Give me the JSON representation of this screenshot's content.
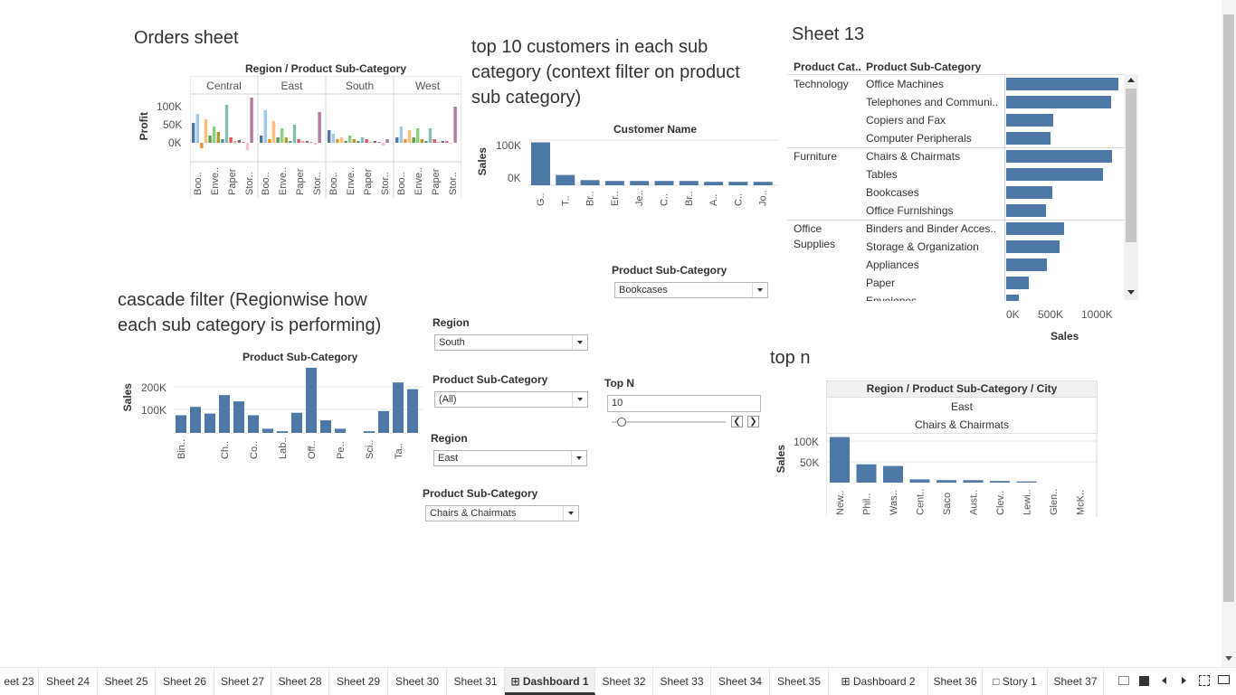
{
  "titles": {
    "orders": "Orders sheet",
    "top10_line1": "top 10 customers in each sub",
    "top10_line2": "category (context filter on product",
    "top10_line3": "sub category)",
    "sheet13": "Sheet 13",
    "cascade_line1": "cascade filter (Regionwise how",
    "cascade_line2": "each sub category  is performing)",
    "topn": "top n"
  },
  "orders_chart": {
    "header": "Region / Product Sub-Category",
    "regions": [
      "Central",
      "East",
      "South",
      "West"
    ],
    "y_axis": "Profit",
    "y_ticks": [
      "100K",
      "50K",
      "0K"
    ],
    "x_labels": [
      "Boo..",
      "Enve..",
      "Paper",
      "Stor.."
    ]
  },
  "top10_chart": {
    "header": "Customer Name",
    "y_axis": "Sales",
    "y_ticks": [
      "100K",
      "0K"
    ],
    "x_labels": [
      "G..",
      "T..",
      "Br..",
      "Er..",
      "Je..",
      "C..",
      "Br..",
      "A..",
      "C..",
      "Jo.."
    ]
  },
  "sheet13": {
    "col1": "Product Cat..",
    "col2": "Product Sub-Category",
    "groups": [
      {
        "category": "Technology",
        "items": [
          "Office Machines",
          "Telephones and Communi..",
          "Copiers and Fax",
          "Computer Peripherals"
        ]
      },
      {
        "category": "Furniture",
        "items": [
          "Chairs & Chairmats",
          "Tables",
          "Bookcases",
          "Office Furnishings"
        ]
      },
      {
        "category": "Office Supplies",
        "items": [
          "Binders and Binder Acces..",
          "Storage & Organization",
          "Appliances",
          "Paper",
          "Envelopes"
        ]
      }
    ],
    "x_ticks": [
      "0K",
      "500K",
      "1000K"
    ],
    "x_axis": "Sales"
  },
  "cascade_chart": {
    "header": "Product Sub-Category",
    "y_axis": "Sales",
    "y_ticks": [
      "200K",
      "100K"
    ],
    "x_labels": [
      "Bin..",
      "Ch..",
      "Co..",
      "Lab..",
      "Off..",
      "Pe..",
      "Sci..",
      "Ta.."
    ]
  },
  "filters": {
    "psc_top_label": "Product Sub-Category",
    "psc_top_value": "Bookcases",
    "region1_label": "Region",
    "region1_value": "South",
    "psc2_label": "Product Sub-Category",
    "psc2_value": "(All)",
    "region2_label": "Region",
    "region2_value": "East",
    "psc3_label": "Product Sub-Category",
    "psc3_value": "Chairs & Chairmats",
    "topn_label": "Top N",
    "topn_value": "10"
  },
  "topn_chart": {
    "header": "Region / Product Sub-Category / City",
    "region": "East",
    "subcat": "Chairs & Chairmats",
    "y_axis": "Sales",
    "y_ticks": [
      "100K",
      "50K"
    ],
    "x_labels": [
      "New..",
      "Phil..",
      "Was..",
      "Cent..",
      "Saco",
      "Aust..",
      "Clev..",
      "Lewi..",
      "Glen..",
      "McK.."
    ]
  },
  "tabs": [
    "eet 23",
    "Sheet 24",
    "Sheet 25",
    "Sheet 26",
    "Sheet 27",
    "Sheet 28",
    "Sheet 29",
    "Sheet 30",
    "Sheet 31",
    "Dashboard 1",
    "Sheet 32",
    "Sheet 33",
    "Sheet 34",
    "Sheet 35",
    "Dashboard 2",
    "Sheet 36",
    "Story 1",
    "Sheet 37"
  ],
  "colors": {
    "bar": "#4e79a7",
    "grid": "#e6e6e6"
  }
}
